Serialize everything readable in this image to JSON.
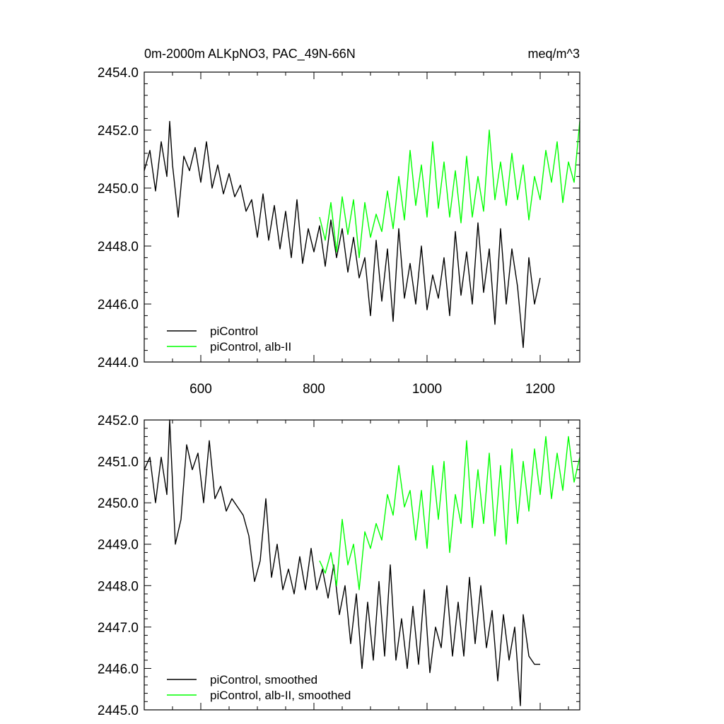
{
  "chart_data": [
    {
      "type": "line",
      "title_left": "0m-2000m ALKpNO3, PAC_49N-66N",
      "title_right": "meq/m^3",
      "xlim": [
        500,
        1270
      ],
      "ylim": [
        2444.0,
        2454.0
      ],
      "xticks": [
        600,
        800,
        1000,
        1200
      ],
      "xtick_labels": [
        "600",
        "800",
        "1000",
        "1200"
      ],
      "yticks": [
        2444.0,
        2446.0,
        2448.0,
        2450.0,
        2452.0,
        2454.0
      ],
      "ytick_labels": [
        "2444.0",
        "2446.0",
        "2448.0",
        "2450.0",
        "2452.0",
        "2454.0"
      ],
      "series": [
        {
          "name": "piControl",
          "color": "#000000",
          "x": [
            500,
            510,
            520,
            530,
            540,
            545,
            550,
            560,
            570,
            580,
            590,
            600,
            610,
            620,
            630,
            640,
            650,
            660,
            670,
            680,
            690,
            700,
            710,
            720,
            730,
            740,
            750,
            760,
            770,
            780,
            790,
            800,
            810,
            820,
            830,
            840,
            850,
            860,
            870,
            880,
            890,
            900,
            910,
            920,
            930,
            940,
            950,
            960,
            970,
            980,
            990,
            1000,
            1010,
            1020,
            1030,
            1040,
            1050,
            1060,
            1070,
            1080,
            1090,
            1100,
            1110,
            1120,
            1130,
            1140,
            1150,
            1160,
            1170,
            1180,
            1190,
            1200
          ],
          "values": [
            2450.6,
            2451.3,
            2449.9,
            2451.6,
            2450.4,
            2452.3,
            2450.8,
            2449.0,
            2451.1,
            2450.6,
            2451.4,
            2450.2,
            2451.6,
            2450.0,
            2450.8,
            2449.8,
            2450.5,
            2449.7,
            2450.1,
            2449.2,
            2449.6,
            2448.3,
            2449.8,
            2448.2,
            2449.4,
            2447.9,
            2449.2,
            2447.6,
            2449.6,
            2447.4,
            2448.6,
            2447.8,
            2448.7,
            2447.3,
            2448.9,
            2447.6,
            2448.6,
            2447.1,
            2448.3,
            2446.9,
            2447.6,
            2445.6,
            2448.2,
            2446.1,
            2447.9,
            2445.4,
            2448.6,
            2446.2,
            2447.4,
            2446.0,
            2448.0,
            2445.8,
            2447.0,
            2446.2,
            2447.6,
            2445.6,
            2448.5,
            2446.3,
            2447.8,
            2446.0,
            2448.8,
            2446.4,
            2447.9,
            2445.3,
            2448.6,
            2446.0,
            2447.9,
            2446.6,
            2444.5,
            2447.6,
            2446.0,
            2446.9
          ]
        },
        {
          "name": "piControl, alb-II",
          "color": "#00ff00",
          "x": [
            810,
            820,
            830,
            840,
            850,
            860,
            870,
            880,
            890,
            900,
            910,
            920,
            930,
            940,
            950,
            960,
            970,
            980,
            990,
            1000,
            1010,
            1020,
            1030,
            1040,
            1050,
            1060,
            1070,
            1080,
            1090,
            1100,
            1110,
            1120,
            1130,
            1140,
            1150,
            1160,
            1170,
            1180,
            1190,
            1200,
            1210,
            1220,
            1230,
            1240,
            1250,
            1260,
            1270
          ],
          "values": [
            2449.0,
            2448.2,
            2449.5,
            2447.8,
            2449.7,
            2448.4,
            2449.6,
            2447.6,
            2449.5,
            2448.3,
            2449.1,
            2448.5,
            2449.9,
            2448.6,
            2450.4,
            2448.9,
            2451.3,
            2449.4,
            2450.8,
            2449.0,
            2451.6,
            2449.3,
            2450.9,
            2449.0,
            2450.6,
            2448.8,
            2451.1,
            2449.0,
            2450.4,
            2449.2,
            2452.0,
            2449.6,
            2450.9,
            2449.4,
            2451.2,
            2449.6,
            2450.8,
            2448.9,
            2450.4,
            2449.6,
            2451.3,
            2450.2,
            2451.6,
            2449.5,
            2450.9,
            2450.2,
            2452.3
          ]
        }
      ],
      "legend": [
        "piControl",
        "piControl, alb-II"
      ],
      "legend_position": "bottom-left"
    },
    {
      "type": "line",
      "xlim": [
        500,
        1270
      ],
      "ylim": [
        2445.0,
        2452.0
      ],
      "yticks": [
        2445.0,
        2446.0,
        2447.0,
        2448.0,
        2449.0,
        2450.0,
        2451.0,
        2452.0
      ],
      "ytick_labels": [
        "2445.0",
        "2446.0",
        "2447.0",
        "2448.0",
        "2449.0",
        "2450.0",
        "2451.0",
        "2452.0"
      ],
      "series": [
        {
          "name": "piControl, smoothed",
          "color": "#000000",
          "x": [
            500,
            510,
            520,
            530,
            540,
            545,
            555,
            565,
            575,
            585,
            595,
            605,
            615,
            625,
            635,
            645,
            655,
            665,
            675,
            685,
            695,
            705,
            715,
            725,
            735,
            745,
            755,
            765,
            775,
            785,
            795,
            805,
            815,
            825,
            835,
            845,
            855,
            865,
            875,
            885,
            895,
            905,
            915,
            925,
            935,
            945,
            955,
            965,
            975,
            985,
            995,
            1005,
            1015,
            1025,
            1035,
            1045,
            1055,
            1065,
            1075,
            1085,
            1095,
            1105,
            1115,
            1125,
            1135,
            1145,
            1155,
            1165,
            1170,
            1180,
            1190,
            1200
          ],
          "values": [
            2450.8,
            2451.1,
            2450.0,
            2451.1,
            2450.2,
            2452.0,
            2449.0,
            2449.6,
            2451.4,
            2450.8,
            2451.2,
            2450.0,
            2451.5,
            2450.1,
            2450.4,
            2449.8,
            2450.1,
            2449.9,
            2449.7,
            2449.2,
            2448.1,
            2448.6,
            2450.1,
            2448.2,
            2449.0,
            2447.9,
            2448.4,
            2447.8,
            2448.7,
            2447.9,
            2448.9,
            2447.9,
            2448.4,
            2447.7,
            2448.5,
            2447.3,
            2448.0,
            2446.6,
            2447.8,
            2446.0,
            2447.6,
            2446.2,
            2448.1,
            2446.3,
            2448.5,
            2446.2,
            2447.2,
            2446.0,
            2447.5,
            2446.1,
            2447.9,
            2445.9,
            2447.0,
            2446.5,
            2448.0,
            2446.3,
            2447.6,
            2446.3,
            2448.2,
            2446.6,
            2448.0,
            2446.5,
            2447.4,
            2445.7,
            2447.3,
            2446.2,
            2447.0,
            2445.1,
            2447.3,
            2446.3,
            2446.1,
            2446.1
          ]
        },
        {
          "name": "piControl, alb-II, smoothed",
          "color": "#00ff00",
          "x": [
            810,
            820,
            830,
            840,
            850,
            860,
            870,
            880,
            890,
            900,
            910,
            920,
            930,
            940,
            950,
            960,
            970,
            980,
            990,
            1000,
            1010,
            1020,
            1030,
            1040,
            1050,
            1060,
            1070,
            1080,
            1090,
            1100,
            1110,
            1120,
            1130,
            1140,
            1150,
            1160,
            1170,
            1180,
            1190,
            1200,
            1210,
            1220,
            1230,
            1240,
            1250,
            1260,
            1270
          ],
          "values": [
            2448.6,
            2448.3,
            2448.8,
            2448.0,
            2449.6,
            2448.5,
            2449.0,
            2447.9,
            2449.3,
            2448.9,
            2449.5,
            2449.1,
            2450.2,
            2449.7,
            2450.9,
            2449.9,
            2450.3,
            2449.1,
            2450.3,
            2448.9,
            2450.9,
            2449.6,
            2451.0,
            2448.8,
            2450.2,
            2449.5,
            2451.5,
            2449.4,
            2450.8,
            2449.5,
            2451.2,
            2449.2,
            2450.9,
            2449.0,
            2451.3,
            2449.5,
            2451.0,
            2449.8,
            2451.3,
            2450.2,
            2451.6,
            2450.1,
            2451.2,
            2450.3,
            2451.6,
            2450.5,
            2451.1
          ]
        }
      ],
      "legend": [
        "piControl, smoothed",
        "piControl, alb-II, smoothed"
      ],
      "legend_position": "bottom-left"
    }
  ]
}
